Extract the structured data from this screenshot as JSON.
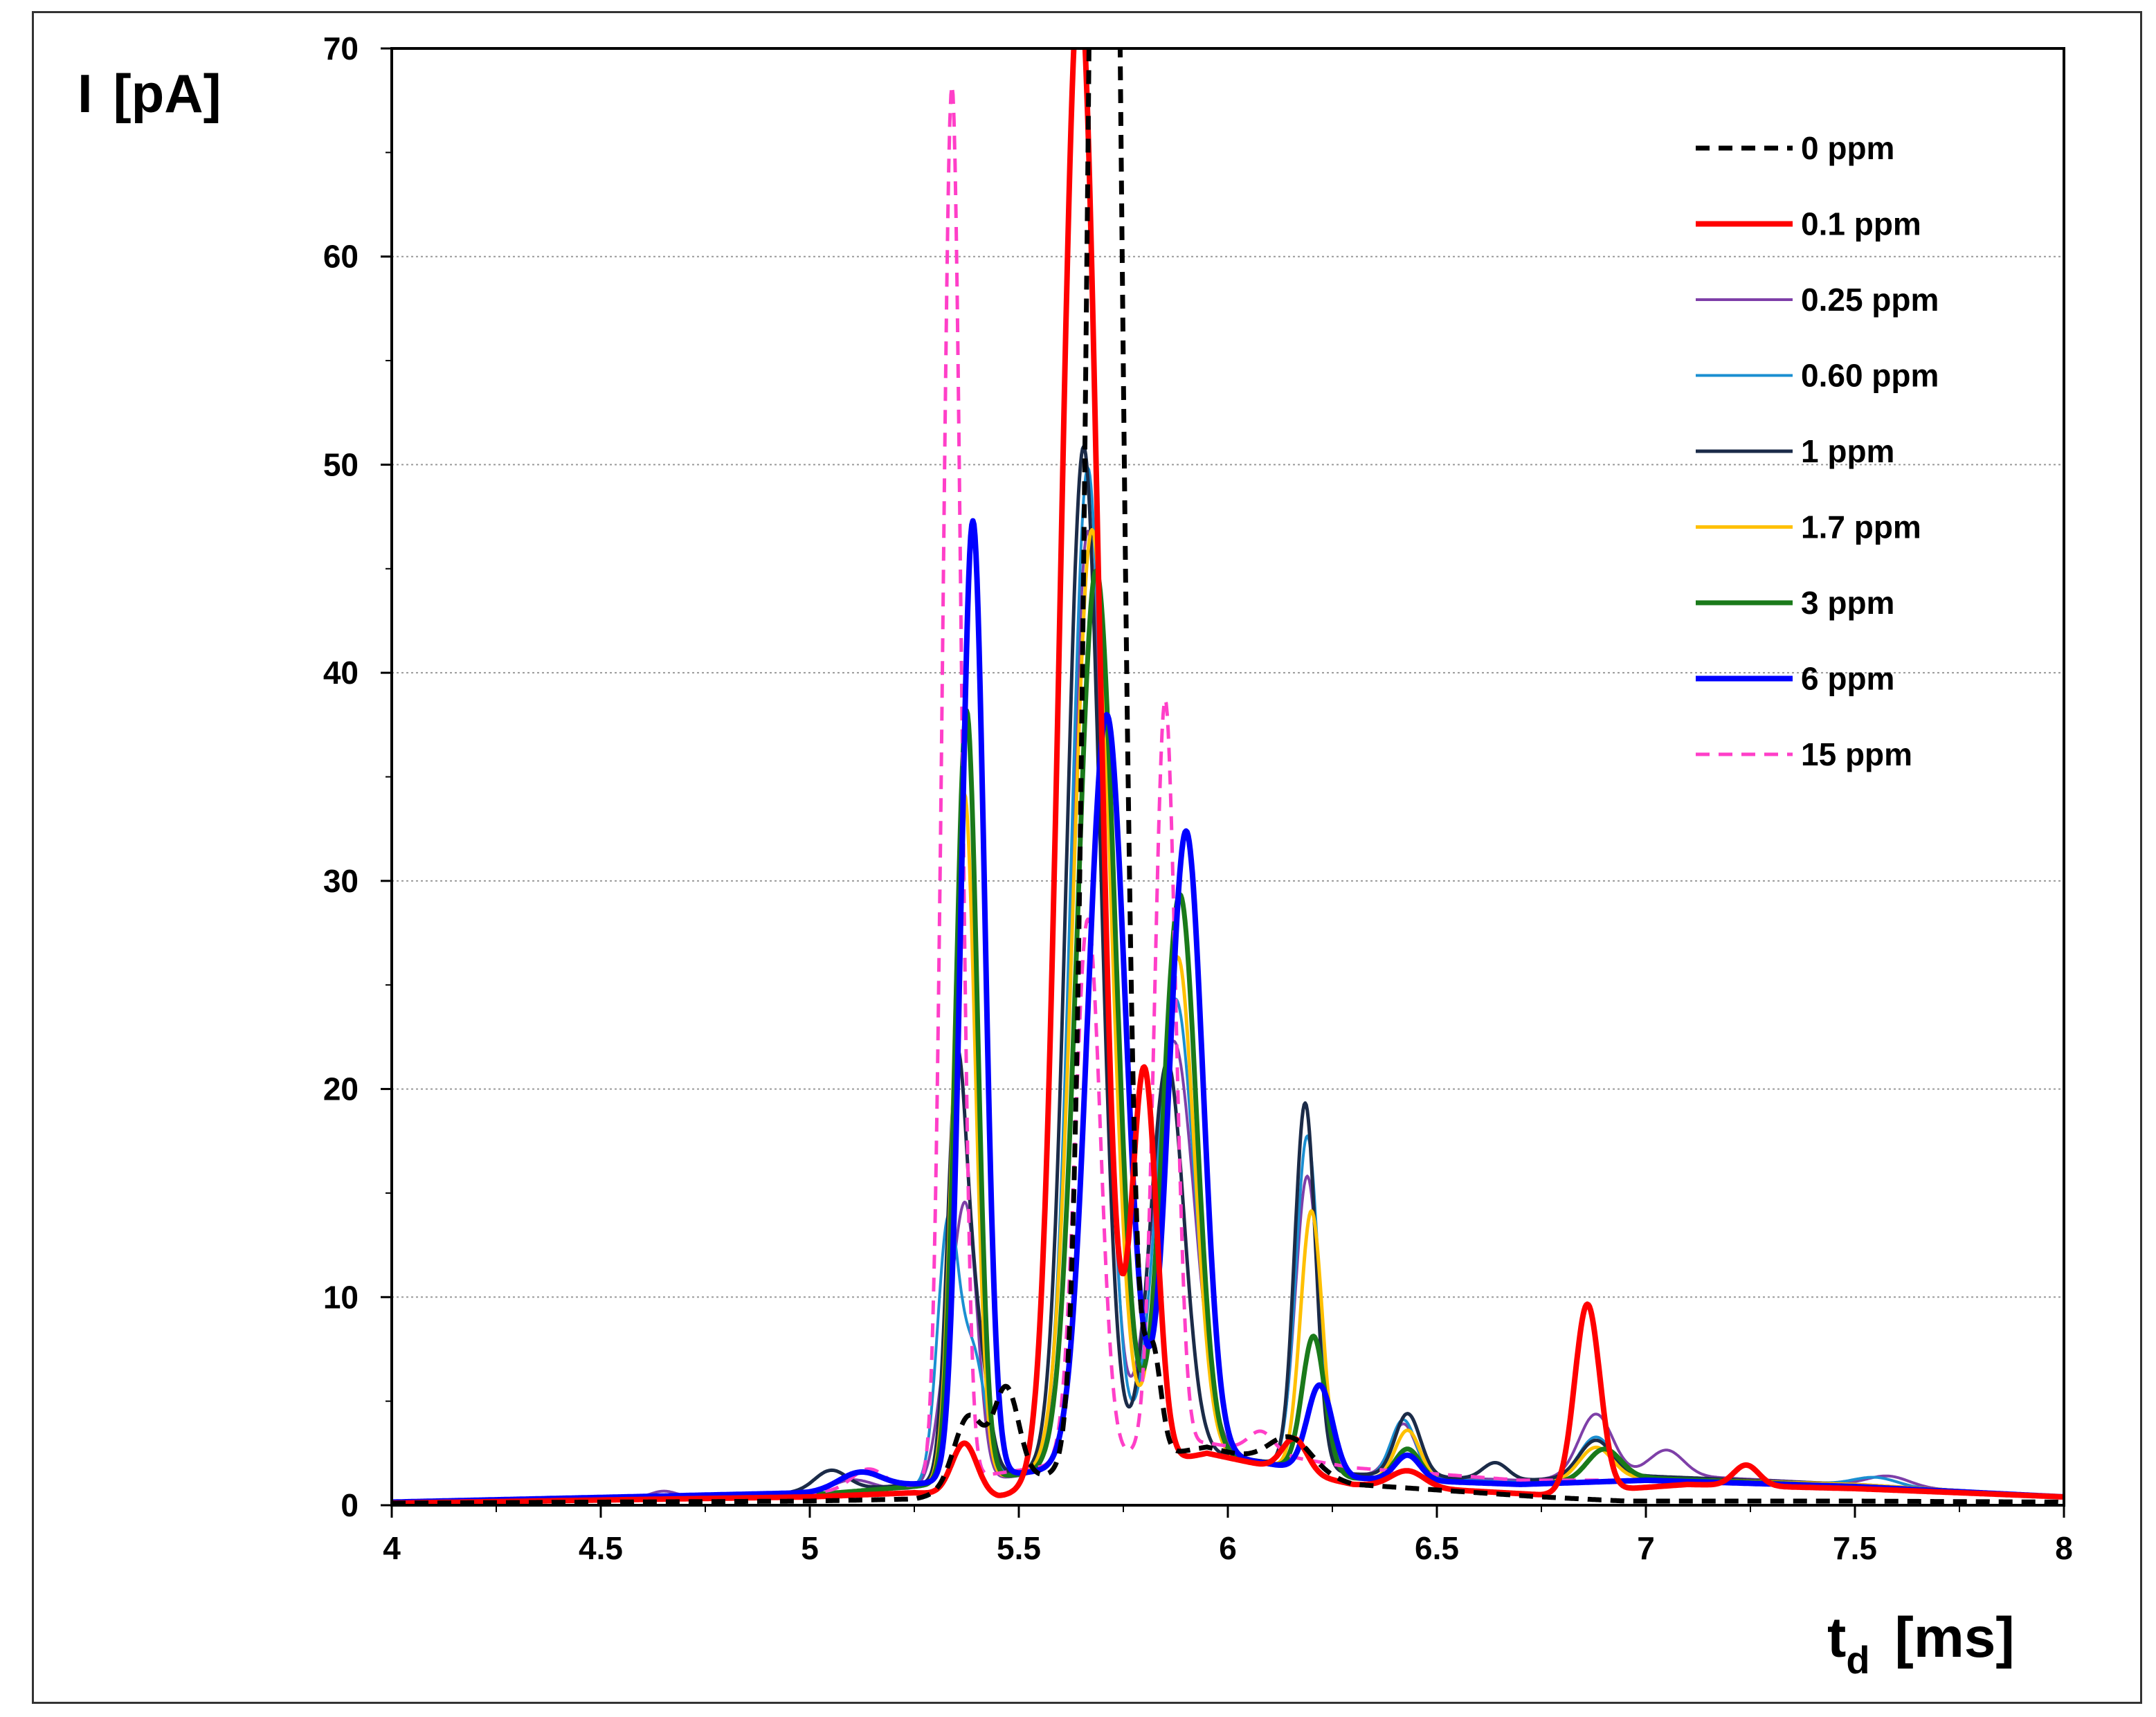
{
  "chart_data": {
    "type": "line",
    "title": "",
    "ylabel": {
      "text": "I",
      "unit": "[pA]"
    },
    "xlabel": {
      "main": "t",
      "sub": "d",
      "unit": "[ms]"
    },
    "xlim": [
      4,
      8
    ],
    "ylim": [
      0,
      70
    ],
    "x_ticks": [
      "4",
      "4.5",
      "5",
      "5.5",
      "6",
      "6.5",
      "7",
      "7.5",
      "8"
    ],
    "y_ticks": [
      "0",
      "10",
      "20",
      "30",
      "40",
      "50",
      "60",
      "70"
    ],
    "grid": "horizontal-dotted",
    "legend_position": "top-right",
    "series": [
      {
        "name": "0 ppm",
        "color": "#000000",
        "width": 7,
        "dash": "20,13",
        "baseline": [
          [
            4,
            0.1
          ],
          [
            5,
            0.2
          ],
          [
            5.25,
            0.3
          ],
          [
            5.95,
            2.8
          ],
          [
            6.3,
            1.0
          ],
          [
            6.75,
            0.4
          ],
          [
            6.95,
            0.2
          ],
          [
            7.5,
            0.2
          ],
          [
            8,
            0.15
          ]
        ],
        "peaks": [
          [
            5.38,
            3.5,
            0.035
          ],
          [
            5.47,
            4.5,
            0.03
          ],
          [
            5.705,
            120,
            0.035
          ],
          [
            5.82,
            5,
            0.02
          ],
          [
            6.15,
            1.5,
            0.05
          ]
        ]
      },
      {
        "name": "0.1 ppm",
        "color": "#ff0000",
        "width": 8,
        "dash": "",
        "baseline": [
          [
            4,
            0.1
          ],
          [
            5,
            0.4
          ],
          [
            5.25,
            0.6
          ],
          [
            5.45,
            0.4
          ],
          [
            5.95,
            2.5
          ],
          [
            6.3,
            1.0
          ],
          [
            6.75,
            0.5
          ],
          [
            7.1,
            1.0
          ],
          [
            7.5,
            0.8
          ],
          [
            8,
            0.4
          ]
        ],
        "peaks": [
          [
            5.37,
            2.5,
            0.03
          ],
          [
            5.645,
            72,
            0.045
          ],
          [
            5.8,
            19,
            0.03
          ],
          [
            6.16,
            1.6,
            0.03
          ],
          [
            6.43,
            0.8,
            0.04
          ],
          [
            6.86,
            9,
            0.03
          ],
          [
            7.24,
            1.0,
            0.03
          ]
        ]
      },
      {
        "name": "0.25 ppm",
        "color": "#7e3fa8",
        "width": 4,
        "dash": "",
        "baseline": [
          [
            4,
            0.15
          ],
          [
            5,
            0.5
          ],
          [
            5.25,
            0.8
          ],
          [
            5.95,
            2.5
          ],
          [
            6.3,
            1.5
          ],
          [
            6.7,
            1.2
          ],
          [
            7.0,
            1.5
          ],
          [
            7.5,
            1.0
          ],
          [
            8,
            0.4
          ]
        ],
        "peaks": [
          [
            4.65,
            0.3,
            0.03
          ],
          [
            5.1,
            0.6,
            0.05
          ],
          [
            5.34,
            7,
            0.03
          ],
          [
            5.38,
            10,
            0.025
          ],
          [
            5.665,
            45,
            0.04
          ],
          [
            5.87,
            20,
            0.05
          ],
          [
            6.19,
            14,
            0.028
          ],
          [
            6.42,
            2.5,
            0.03
          ],
          [
            6.88,
            3,
            0.04
          ],
          [
            7.05,
            1.2,
            0.04
          ],
          [
            7.58,
            0.5,
            0.05
          ]
        ]
      },
      {
        "name": "0.60 ppm",
        "color": "#1a8fd1",
        "width": 4,
        "dash": "",
        "baseline": [
          [
            4,
            0.15
          ],
          [
            5,
            0.5
          ],
          [
            5.25,
            0.9
          ],
          [
            5.95,
            2.5
          ],
          [
            6.3,
            1.4
          ],
          [
            6.7,
            1.1
          ],
          [
            7.0,
            1.4
          ],
          [
            7.5,
            1.0
          ],
          [
            8,
            0.4
          ]
        ],
        "peaks": [
          [
            5.33,
            12,
            0.025
          ],
          [
            5.39,
            6,
            0.03
          ],
          [
            5.665,
            48,
            0.04
          ],
          [
            5.875,
            22,
            0.045
          ],
          [
            6.19,
            16,
            0.027
          ],
          [
            6.42,
            2.8,
            0.03
          ],
          [
            6.88,
            2,
            0.04
          ],
          [
            7.55,
            0.4,
            0.05
          ]
        ]
      },
      {
        "name": "1 ppm",
        "color": "#1b2b48",
        "width": 5,
        "dash": "",
        "baseline": [
          [
            4,
            0.15
          ],
          [
            5,
            0.6
          ],
          [
            5.25,
            1.0
          ],
          [
            5.95,
            2.5
          ],
          [
            6.3,
            1.5
          ],
          [
            6.7,
            1.2
          ],
          [
            7.0,
            1.4
          ],
          [
            7.5,
            1.0
          ],
          [
            8,
            0.4
          ]
        ],
        "peaks": [
          [
            5.05,
            1.0,
            0.04
          ],
          [
            5.35,
            17,
            0.022
          ],
          [
            5.39,
            8,
            0.03
          ],
          [
            5.655,
            49,
            0.04
          ],
          [
            5.855,
            19,
            0.04
          ],
          [
            6.185,
            17.5,
            0.025
          ],
          [
            6.43,
            3,
            0.03
          ],
          [
            6.64,
            0.8,
            0.03
          ],
          [
            6.88,
            1.8,
            0.04
          ]
        ]
      },
      {
        "name": "1.7 ppm",
        "color": "#ffc000",
        "width": 5,
        "dash": "",
        "baseline": [
          [
            4,
            0.15
          ],
          [
            5,
            0.5
          ],
          [
            5.25,
            0.9
          ],
          [
            5.95,
            2.5
          ],
          [
            6.3,
            1.3
          ],
          [
            6.7,
            1.0
          ],
          [
            7.0,
            1.3
          ],
          [
            7.5,
            1.0
          ],
          [
            8,
            0.4
          ]
        ],
        "peaks": [
          [
            5.37,
            33,
            0.026
          ],
          [
            5.675,
            45,
            0.045
          ],
          [
            5.88,
            24,
            0.04
          ],
          [
            6.2,
            12.5,
            0.026
          ],
          [
            6.43,
            2.4,
            0.03
          ],
          [
            6.88,
            1.6,
            0.04
          ]
        ]
      },
      {
        "name": "3 ppm",
        "color": "#1a7a1a",
        "width": 7,
        "dash": "",
        "baseline": [
          [
            4,
            0.15
          ],
          [
            5,
            0.5
          ],
          [
            5.25,
            0.9
          ],
          [
            5.95,
            2.5
          ],
          [
            6.3,
            1.3
          ],
          [
            6.7,
            1.0
          ],
          [
            7.0,
            1.3
          ],
          [
            7.5,
            0.9
          ],
          [
            8,
            0.4
          ]
        ],
        "peaks": [
          [
            5.375,
            37,
            0.026
          ],
          [
            5.685,
            43,
            0.045
          ],
          [
            5.885,
            27,
            0.04
          ],
          [
            6.205,
            6.5,
            0.027
          ],
          [
            6.43,
            1.5,
            0.03
          ],
          [
            6.9,
            1.5,
            0.04
          ]
        ]
      },
      {
        "name": "6 ppm",
        "color": "#0000ff",
        "width": 8,
        "dash": "",
        "baseline": [
          [
            4,
            0.15
          ],
          [
            5,
            0.6
          ],
          [
            5.25,
            1.0
          ],
          [
            5.95,
            2.5
          ],
          [
            6.3,
            1.3
          ],
          [
            6.7,
            1.0
          ],
          [
            7.0,
            1.2
          ],
          [
            7.5,
            0.9
          ],
          [
            8,
            0.4
          ]
        ],
        "peaks": [
          [
            5.12,
            0.8,
            0.05
          ],
          [
            5.39,
            46,
            0.028
          ],
          [
            5.71,
            36,
            0.045
          ],
          [
            5.9,
            30,
            0.04
          ],
          [
            6.22,
            4.2,
            0.03
          ],
          [
            6.43,
            1.2,
            0.03
          ]
        ]
      },
      {
        "name": "15 ppm",
        "color": "#ff3fc8",
        "width": 5,
        "dash": "20,13",
        "baseline": [
          [
            4,
            0.15
          ],
          [
            5,
            0.6
          ],
          [
            5.2,
            0.8
          ],
          [
            5.95,
            3.0
          ],
          [
            6.3,
            1.8
          ],
          [
            6.7,
            1.2
          ],
          [
            7.0,
            1.2
          ],
          [
            7.5,
            0.9
          ],
          [
            8,
            0.4
          ]
        ],
        "peaks": [
          [
            5.14,
            1.0,
            0.04
          ],
          [
            5.34,
            67,
            0.022
          ],
          [
            5.665,
            26,
            0.03
          ],
          [
            5.85,
            36,
            0.025
          ],
          [
            6.08,
            1.0,
            0.03
          ]
        ]
      }
    ]
  }
}
